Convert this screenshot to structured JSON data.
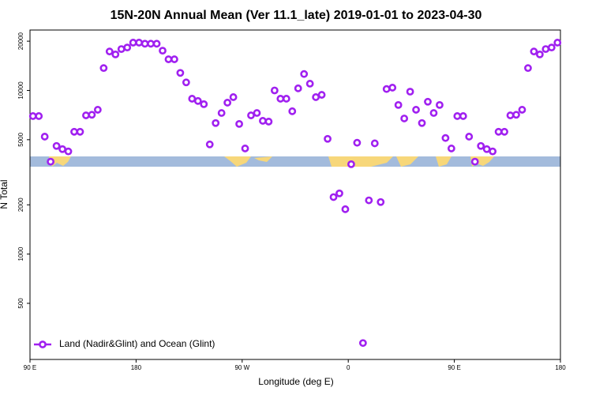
{
  "chart_data": {
    "type": "scatter",
    "title": "15N-20N Annual Mean (Ver 11.1_late)   2019-01-01 to 2023-04-30",
    "xlabel": "Longitude (deg E)",
    "ylabel": "N Total",
    "xlim": [
      90,
      540
    ],
    "xticks": [
      {
        "value": 90,
        "label": "90 E"
      },
      180,
      {
        "value": 270,
        "label": "90 W"
      },
      {
        "value": 360,
        "label": "0"
      },
      {
        "value": 450,
        "label": "90 E"
      },
      {
        "value": 540,
        "label": "180"
      }
    ],
    "ylim": [
      227,
      23400
    ],
    "yticks": [
      500,
      1000,
      2000,
      5000,
      10000,
      20000
    ],
    "log_y": true,
    "legend": "bottom-left",
    "series": [
      {
        "name": "Land (Nadir&Glint) and Ocean (Glint)",
        "color": "#a020f0",
        "x": [
          92.5,
          97.5,
          102.5,
          107.5,
          112.5,
          117.5,
          122.5,
          127.5,
          132.5,
          137.5,
          142.5,
          147.5,
          152.5,
          157.5,
          162.5,
          167.5,
          172.5,
          177.5,
          182.5,
          187.5,
          192.5,
          197.5,
          202.5,
          207.5,
          212.5,
          217.5,
          222.5,
          227.5,
          232.5,
          237.5,
          242.5,
          247.5,
          252.5,
          257.5,
          262.5,
          267.5,
          272.5,
          277.5,
          282.5,
          287.5,
          292.5,
          297.5,
          302.5,
          307.5,
          312.5,
          317.5,
          322.5,
          327.5,
          332.5,
          337.5,
          342.5,
          347.5,
          352.5,
          357.5,
          362.5,
          367.5,
          372.5,
          377.5,
          382.5,
          387.5,
          392.5,
          397.5,
          402.5,
          407.5,
          412.5,
          417.5,
          422.5,
          427.5,
          432.5,
          437.5,
          442.5,
          447.5,
          452.5,
          457.5,
          462.5,
          467.5,
          472.5,
          477.5,
          482.5,
          487.5,
          492.5,
          497.5,
          502.5,
          507.5,
          512.5,
          517.5,
          522.5,
          527.5,
          532.5,
          537.5
        ],
        "values": [
          6970,
          6970,
          5220,
          3670,
          4580,
          4380,
          4240,
          5590,
          5590,
          7040,
          7100,
          7620,
          13700,
          17300,
          16600,
          17900,
          18300,
          19600,
          19600,
          19300,
          19300,
          19300,
          17500,
          15500,
          15500,
          12800,
          11200,
          8900,
          8620,
          8240,
          4680,
          6320,
          7280,
          8420,
          9100,
          6240,
          4420,
          7040,
          7280,
          6520,
          6450,
          10000,
          8900,
          8900,
          7460,
          10300,
          12600,
          11000,
          9100,
          9400,
          5060,
          2230,
          2350,
          1880,
          3540,
          4790,
          286,
          2130,
          4750,
          2080,
          10200,
          10400,
          8150,
          6740,
          9830,
          7620,
          6320,
          8530,
          7280,
          8150,
          5120,
          4420,
          6970,
          6970,
          5220,
          3670,
          4580,
          4380,
          4240,
          5590,
          5590,
          7040,
          7100,
          7620,
          13700,
          17300,
          16600,
          17900,
          18300,
          19600
        ]
      }
    ]
  }
}
